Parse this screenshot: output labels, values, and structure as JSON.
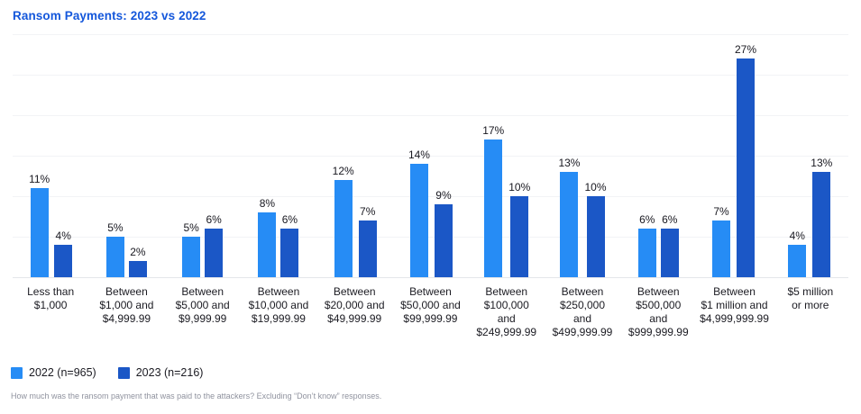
{
  "title": "Ransom Payments: 2023 vs 2022",
  "colors": {
    "title_blue": "#1457db",
    "series_2022": "#268cf5",
    "series_2023": "#1b57c6",
    "gridline": "#f2f3f6",
    "axis_line": "#e4e6ea",
    "label_dark": "#1b1b22",
    "footnote_gray": "#8f929e"
  },
  "legend": {
    "items": [
      {
        "label": "2022 (n=965)",
        "color": "#268cf5"
      },
      {
        "label": "2023 (n=216)",
        "color": "#1b57c6"
      }
    ]
  },
  "footnote": "How much was the ransom payment that was paid to the attackers? Excluding “Don’t know” responses.",
  "chart_data": {
    "type": "bar",
    "title": "Ransom Payments: 2023 vs 2022",
    "unit": "%",
    "ylim": [
      0,
      30
    ],
    "gridline_step": 5,
    "grid": true,
    "legend_position": "bottom-left",
    "xlabel": "",
    "ylabel": "",
    "categories": [
      [
        "Less than",
        "$1,000"
      ],
      [
        "Between",
        "$1,000 and",
        "$4,999.99"
      ],
      [
        "Between",
        "$5,000 and",
        "$9,999.99"
      ],
      [
        "Between",
        "$10,000 and",
        "$19,999.99"
      ],
      [
        "Between",
        "$20,000 and",
        "$49,999.99"
      ],
      [
        "Between",
        "$50,000 and",
        "$99,999.99"
      ],
      [
        "Between",
        "$100,000",
        "and",
        "$249,999.99"
      ],
      [
        "Between",
        "$250,000",
        "and",
        "$499,999.99"
      ],
      [
        "Between",
        "$500,000",
        "and",
        "$999,999.99"
      ],
      [
        "Between",
        "$1 million and",
        "$4,999,999.99"
      ],
      [
        "$5 million",
        "or more"
      ]
    ],
    "series": [
      {
        "name": "2022 (n=965)",
        "color": "#268cf5",
        "values": [
          11,
          5,
          5,
          8,
          12,
          14,
          17,
          13,
          6,
          7,
          4
        ]
      },
      {
        "name": "2023 (n=216)",
        "color": "#1b57c6",
        "values": [
          4,
          2,
          6,
          6,
          7,
          9,
          10,
          10,
          6,
          27,
          13
        ]
      }
    ]
  }
}
